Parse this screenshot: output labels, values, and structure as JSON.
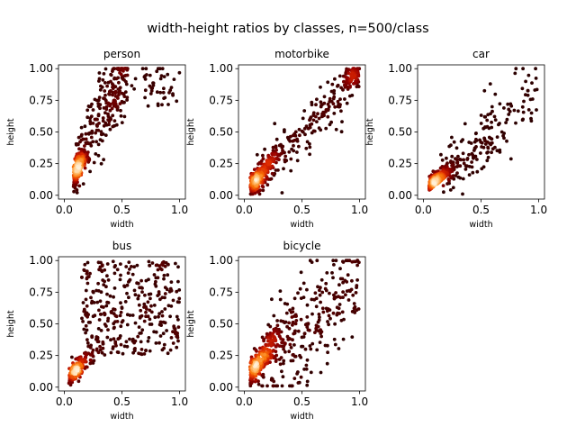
{
  "figure": {
    "title": "width-height ratios by classes, n=500/class",
    "background": "#ffffff"
  },
  "chart_data": [
    {
      "type": "scatter",
      "title": "person",
      "xlabel": "width",
      "ylabel": "height",
      "xlim": [
        -0.05,
        1.05
      ],
      "ylim": [
        -0.03,
        1.03
      ],
      "xticks": [
        "0.0",
        "0.5",
        "1.0"
      ],
      "yticks": [
        "0.00",
        "0.25",
        "0.50",
        "0.75",
        "1.00"
      ],
      "colormap": "gist_heat (point density)",
      "points_summary": "dense light cluster near (0.05-0.15, 0.05-0.25); dark sparse spread up to (1.0, 1.0), many points at height=1.00",
      "n": 500
    },
    {
      "type": "scatter",
      "title": "motorbike",
      "xlabel": "width",
      "ylabel": "height",
      "xlim": [
        -0.05,
        1.05
      ],
      "ylim": [
        -0.03,
        1.03
      ],
      "xticks": [
        "0.0",
        "0.5",
        "1.0"
      ],
      "yticks": [
        "0.00",
        "0.25",
        "0.50",
        "0.75",
        "1.00"
      ],
      "colormap": "gist_heat (point density)",
      "points_summary": "diagonal band from (0.05,0.05) to (1.0,1.0); bright cluster near (0.1-0.3, 0.1-0.3) and near (0.95, 0.95)",
      "n": 500
    },
    {
      "type": "scatter",
      "title": "car",
      "xlabel": "width",
      "ylabel": "height",
      "xlim": [
        -0.05,
        1.05
      ],
      "ylim": [
        -0.03,
        1.03
      ],
      "xticks": [
        "0.0",
        "0.5",
        "1.0"
      ],
      "yticks": [
        "0.00",
        "0.25",
        "0.50",
        "0.75",
        "1.00"
      ],
      "colormap": "gist_heat (point density)",
      "points_summary": "bright dense cluster near (0.05-0.3, 0.05-0.25); sparse dark points rising to (1.0, 1.0)",
      "n": 500
    },
    {
      "type": "scatter",
      "title": "bus",
      "xlabel": "width",
      "ylabel": "height",
      "xlim": [
        -0.05,
        1.05
      ],
      "ylim": [
        -0.03,
        1.03
      ],
      "xticks": [
        "0.0",
        "0.5",
        "1.0"
      ],
      "yticks": [
        "0.00",
        "0.25",
        "0.50",
        "0.75",
        "1.00"
      ],
      "colormap": "gist_heat (point density)",
      "points_summary": "bright cluster near (0.05-0.3, 0.05-0.3); broad spread over (0.2-1.0, 0.3-1.0) with red cluster near (0.7-0.9, 0.55-0.85)",
      "n": 500
    },
    {
      "type": "scatter",
      "title": "bicycle",
      "xlabel": "width",
      "ylabel": "height",
      "xlim": [
        -0.05,
        1.05
      ],
      "ylim": [
        -0.03,
        1.03
      ],
      "xticks": [
        "0.0",
        "0.5",
        "1.0"
      ],
      "yticks": [
        "0.00",
        "0.25",
        "0.50",
        "0.75",
        "1.00"
      ],
      "colormap": "gist_heat (point density)",
      "points_summary": "bright cluster near (0.05-0.3, 0.1-0.4) along diagonal; dark spread toward (1.0, 1.0)",
      "n": 500
    }
  ]
}
